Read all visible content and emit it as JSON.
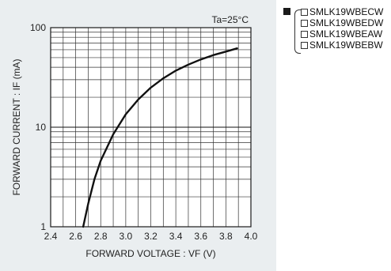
{
  "chart_data": {
    "type": "line",
    "annotation": "Ta=25°C",
    "xlabel": "FORWARD VOLTAGE : VF  (V)",
    "ylabel": "FORWARD CURRENT : IF  (mA)",
    "xlim": [
      2.4,
      4.0
    ],
    "ylim": [
      1,
      100
    ],
    "yscale": "log",
    "grid": true,
    "x_ticks": [
      "2.4",
      "2.6",
      "2.8",
      "3.0",
      "3.2",
      "3.4",
      "3.6",
      "3.8",
      "4.0"
    ],
    "y_ticks": [
      "1",
      "10",
      "100"
    ],
    "series": [
      {
        "x": [
          2.66,
          2.7,
          2.75,
          2.8,
          2.9,
          3.0,
          3.1,
          3.2,
          3.3,
          3.4,
          3.5,
          3.6,
          3.7,
          3.8,
          3.89
        ],
        "y": [
          1.0,
          1.7,
          3.0,
          4.6,
          8.5,
          13.5,
          19.0,
          25.0,
          31.0,
          37.0,
          42.5,
          48.0,
          53.0,
          57.5,
          62.0
        ],
        "color": "#111111"
      }
    ]
  },
  "legend": {
    "items": [
      "SMLK19WBECW",
      "SMLK19WBEDW",
      "SMLK19WBEAW",
      "SMLK19WBEBW"
    ]
  }
}
